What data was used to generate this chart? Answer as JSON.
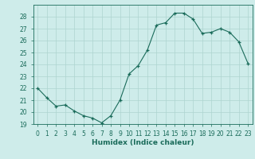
{
  "x": [
    0,
    1,
    2,
    3,
    4,
    5,
    6,
    7,
    8,
    9,
    10,
    11,
    12,
    13,
    14,
    15,
    16,
    17,
    18,
    19,
    20,
    21,
    22,
    23
  ],
  "y": [
    22.0,
    21.2,
    20.5,
    20.6,
    20.1,
    19.7,
    19.5,
    19.1,
    19.7,
    21.0,
    23.2,
    23.9,
    25.2,
    27.3,
    27.5,
    28.3,
    28.3,
    27.8,
    26.6,
    26.7,
    27.0,
    26.7,
    25.9,
    24.1
  ],
  "bg_color": "#ceecea",
  "grid_color": "#aed4d0",
  "line_color": "#1a6b5a",
  "marker_color": "#1a6b5a",
  "xlabel": "Humidex (Indice chaleur)",
  "ylim": [
    19,
    29
  ],
  "xlim": [
    -0.5,
    23.5
  ],
  "yticks": [
    19,
    20,
    21,
    22,
    23,
    24,
    25,
    26,
    27,
    28
  ],
  "xticks": [
    0,
    1,
    2,
    3,
    4,
    5,
    6,
    7,
    8,
    9,
    10,
    11,
    12,
    13,
    14,
    15,
    16,
    17,
    18,
    19,
    20,
    21,
    22,
    23
  ],
  "tick_color": "#1a6b5a",
  "tick_fontsize": 5.5,
  "xlabel_fontsize": 6.5
}
